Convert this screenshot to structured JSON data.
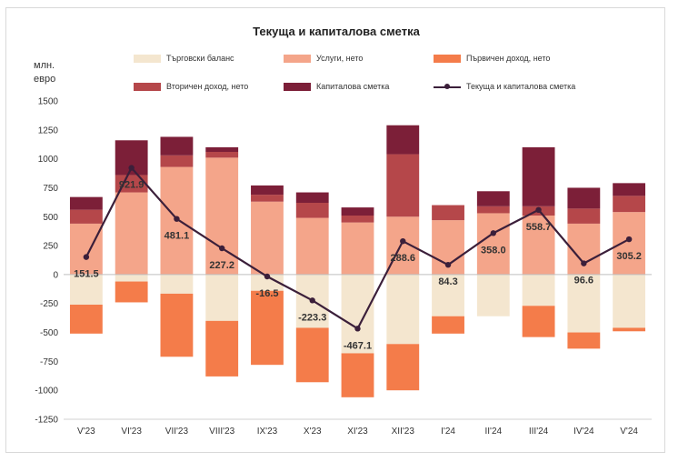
{
  "chart_data": {
    "type": "bar",
    "title": "Текуща и капиталова сметка",
    "ylabel": "млн.\nевро",
    "ylim": [
      -1250,
      1500
    ],
    "yticks": [
      1500,
      1250,
      1000,
      750,
      500,
      250,
      0,
      -250,
      -500,
      -750,
      -1000,
      -1250
    ],
    "categories": [
      "V'23",
      "VI'23",
      "VII'23",
      "VIII'23",
      "IX'23",
      "X'23",
      "XI'23",
      "XII'23",
      "I'24",
      "II'24",
      "III'24",
      "IV'24",
      "V'24"
    ],
    "series": [
      {
        "name": "Търговски баланс",
        "color": "#f4e6cf",
        "values": [
          -260,
          -60,
          -165,
          -400,
          -140,
          -460,
          -680,
          -600,
          -360,
          -360,
          -270,
          -500,
          -460
        ]
      },
      {
        "name": "Услуги, нето",
        "color": "#f4a58a",
        "values": [
          440,
          710,
          930,
          1010,
          630,
          490,
          450,
          500,
          470,
          530,
          510,
          440,
          540
        ]
      },
      {
        "name": "Първичен доход, нето",
        "color": "#f47c4a",
        "values": [
          -250,
          -180,
          -545,
          -480,
          -640,
          -470,
          -380,
          -400,
          -150,
          0,
          -270,
          -140,
          -30
        ]
      },
      {
        "name": "Вторичен доход, нето",
        "color": "#b5474a",
        "values": [
          120,
          150,
          100,
          50,
          60,
          130,
          60,
          540,
          130,
          60,
          80,
          130,
          140
        ]
      },
      {
        "name": "Капиталова сметка",
        "color": "#7c1f38",
        "values": [
          110,
          300,
          160,
          40,
          80,
          90,
          70,
          250,
          0,
          130,
          510,
          180,
          110
        ]
      }
    ],
    "line": {
      "name": "Текуща и капиталова сметка",
      "color": "#3b1f3a",
      "values": [
        151.5,
        921.9,
        481.1,
        227.2,
        -16.5,
        -223.3,
        -467.1,
        288.6,
        84.3,
        358.0,
        558.7,
        96.6,
        305.2
      ]
    },
    "data_labels": [
      "151.5",
      "921.9",
      "481.1",
      "227.2",
      "-16.5",
      "-223.3",
      "-467.1",
      "288.6",
      "84.3",
      "358.0",
      "558.7",
      "96.6",
      "305.2"
    ],
    "legend_placement": "top",
    "grid": false
  }
}
